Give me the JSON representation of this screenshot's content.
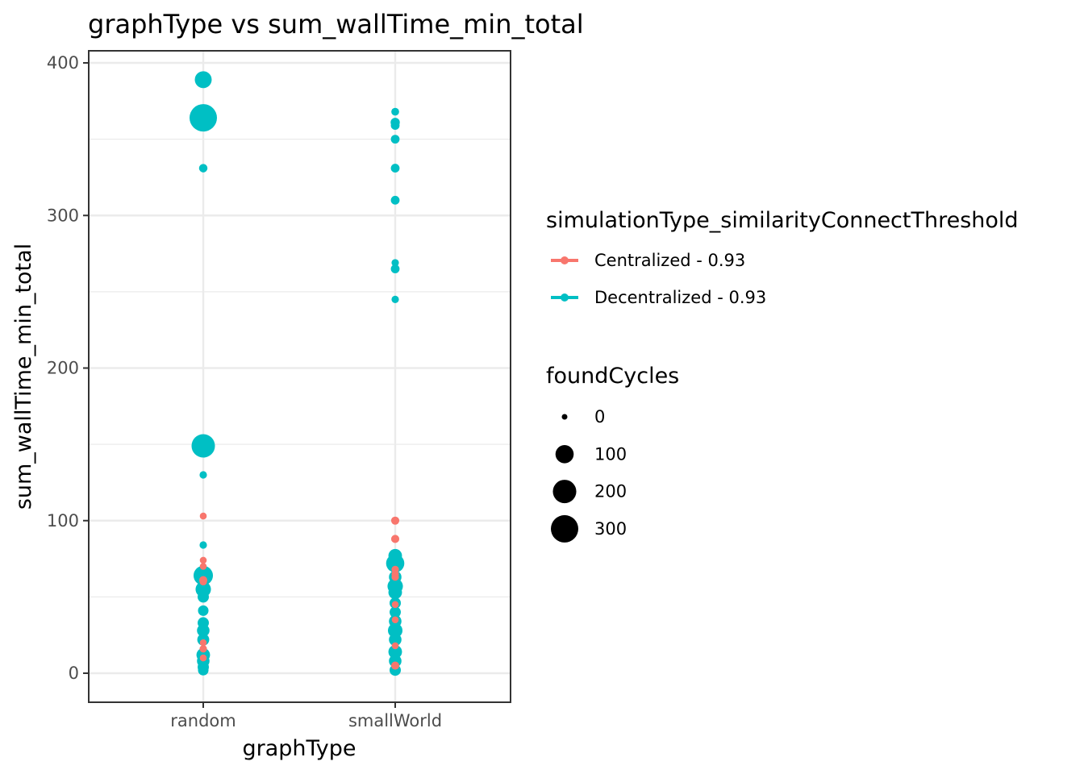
{
  "chart_data": {
    "type": "scatter",
    "title": "graphType  vs  sum_wallTime_min_total",
    "xlabel": "graphType",
    "ylabel": "sum_wallTime_min_total",
    "categories": [
      "random",
      "smallWorld"
    ],
    "ylim": [
      -19,
      400
    ],
    "yticks": [
      0,
      100,
      200,
      300,
      400
    ],
    "grid": true,
    "legend_placement": "right",
    "color_legend": {
      "title": "simulationType_similarityConnectThreshold",
      "entries": [
        {
          "label": "Centralized - 0.93",
          "color": "#F8766D"
        },
        {
          "label": "Decentralized - 0.93",
          "color": "#00BFC4"
        }
      ]
    },
    "size_legend": {
      "title": "foundCycles",
      "entries": [
        {
          "label": "0",
          "value": 0
        },
        {
          "label": "100",
          "value": 100
        },
        {
          "label": "200",
          "value": 200
        },
        {
          "label": "300",
          "value": 300
        }
      ]
    },
    "series": [
      {
        "name": "Decentralized - 0.93",
        "color": "#00BFC4",
        "points": [
          {
            "x": "random",
            "y": 389,
            "size": 80
          },
          {
            "x": "random",
            "y": 364,
            "size": 300
          },
          {
            "x": "random",
            "y": 331,
            "size": 5
          },
          {
            "x": "random",
            "y": 149,
            "size": 200
          },
          {
            "x": "random",
            "y": 130,
            "size": 2
          },
          {
            "x": "random",
            "y": 84,
            "size": 2
          },
          {
            "x": "random",
            "y": 64,
            "size": 120
          },
          {
            "x": "random",
            "y": 55,
            "size": 60
          },
          {
            "x": "random",
            "y": 50,
            "size": 20
          },
          {
            "x": "random",
            "y": 41,
            "size": 15
          },
          {
            "x": "random",
            "y": 33,
            "size": 20
          },
          {
            "x": "random",
            "y": 28,
            "size": 30
          },
          {
            "x": "random",
            "y": 22,
            "size": 25
          },
          {
            "x": "random",
            "y": 12,
            "size": 40
          },
          {
            "x": "random",
            "y": 8,
            "size": 30
          },
          {
            "x": "random",
            "y": 4,
            "size": 20
          },
          {
            "x": "random",
            "y": 2,
            "size": 15
          },
          {
            "x": "smallWorld",
            "y": 368,
            "size": 3
          },
          {
            "x": "smallWorld",
            "y": 361,
            "size": 8
          },
          {
            "x": "smallWorld",
            "y": 359,
            "size": 6
          },
          {
            "x": "smallWorld",
            "y": 350,
            "size": 6
          },
          {
            "x": "smallWorld",
            "y": 331,
            "size": 6
          },
          {
            "x": "smallWorld",
            "y": 310,
            "size": 6
          },
          {
            "x": "smallWorld",
            "y": 269,
            "size": 2
          },
          {
            "x": "smallWorld",
            "y": 265,
            "size": 6
          },
          {
            "x": "smallWorld",
            "y": 245,
            "size": 2
          },
          {
            "x": "smallWorld",
            "y": 77,
            "size": 40
          },
          {
            "x": "smallWorld",
            "y": 72,
            "size": 100
          },
          {
            "x": "smallWorld",
            "y": 63,
            "size": 30
          },
          {
            "x": "smallWorld",
            "y": 57,
            "size": 60
          },
          {
            "x": "smallWorld",
            "y": 53,
            "size": 40
          },
          {
            "x": "smallWorld",
            "y": 46,
            "size": 20
          },
          {
            "x": "smallWorld",
            "y": 40,
            "size": 20
          },
          {
            "x": "smallWorld",
            "y": 34,
            "size": 30
          },
          {
            "x": "smallWorld",
            "y": 28,
            "size": 50
          },
          {
            "x": "smallWorld",
            "y": 22,
            "size": 30
          },
          {
            "x": "smallWorld",
            "y": 14,
            "size": 40
          },
          {
            "x": "smallWorld",
            "y": 8,
            "size": 30
          },
          {
            "x": "smallWorld",
            "y": 2,
            "size": 20
          }
        ]
      },
      {
        "name": "Centralized - 0.93",
        "color": "#F8766D",
        "points": [
          {
            "x": "random",
            "y": 103,
            "size": 1
          },
          {
            "x": "random",
            "y": 74,
            "size": 1
          },
          {
            "x": "random",
            "y": 70,
            "size": 1
          },
          {
            "x": "random",
            "y": 61,
            "size": 4
          },
          {
            "x": "random",
            "y": 60,
            "size": 2
          },
          {
            "x": "random",
            "y": 20,
            "size": 1
          },
          {
            "x": "random",
            "y": 16,
            "size": 2
          },
          {
            "x": "random",
            "y": 10,
            "size": 1
          },
          {
            "x": "smallWorld",
            "y": 100,
            "size": 4
          },
          {
            "x": "smallWorld",
            "y": 88,
            "size": 4
          },
          {
            "x": "smallWorld",
            "y": 68,
            "size": 2
          },
          {
            "x": "smallWorld",
            "y": 65,
            "size": 2
          },
          {
            "x": "smallWorld",
            "y": 63,
            "size": 2
          },
          {
            "x": "smallWorld",
            "y": 45,
            "size": 1
          },
          {
            "x": "smallWorld",
            "y": 35,
            "size": 1
          },
          {
            "x": "smallWorld",
            "y": 18,
            "size": 1
          },
          {
            "x": "smallWorld",
            "y": 5,
            "size": 4
          }
        ]
      }
    ]
  }
}
